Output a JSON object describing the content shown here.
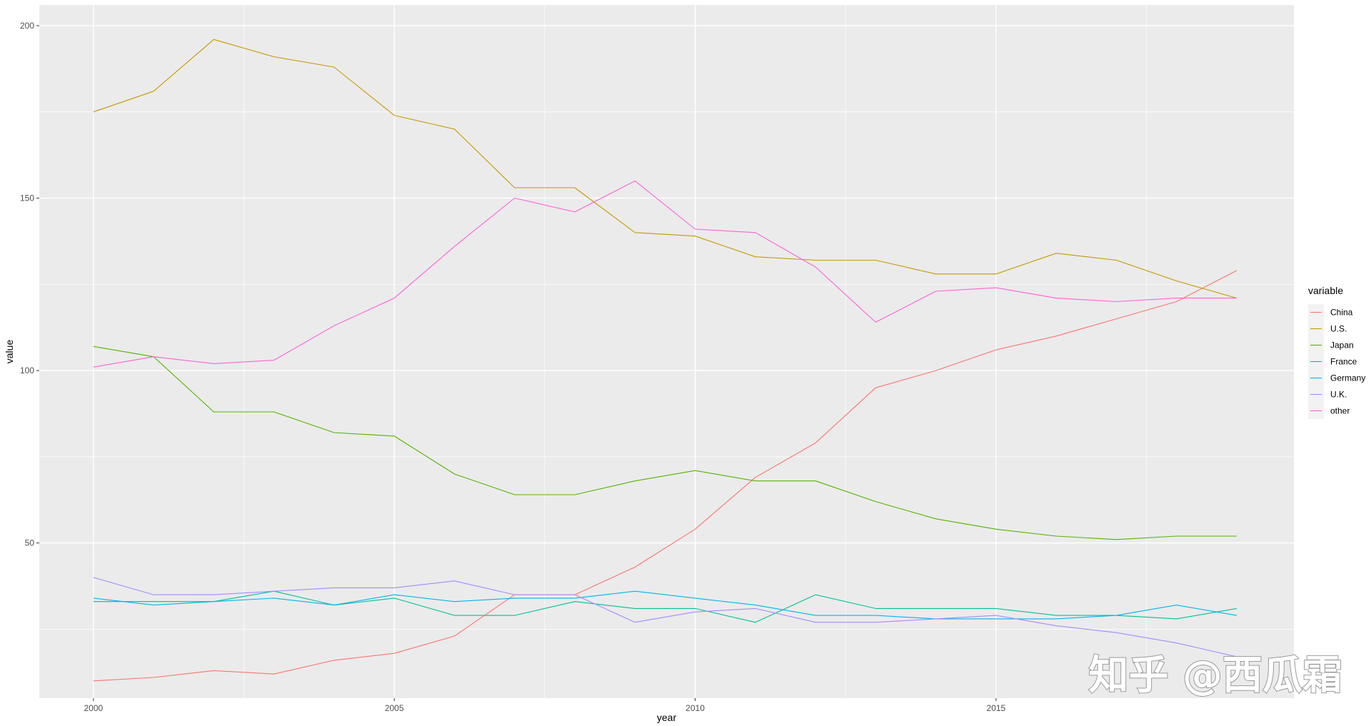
{
  "watermark": "知乎 @西瓜霜",
  "chart_data": {
    "type": "line",
    "xlabel": "year",
    "ylabel": "value",
    "xlim": [
      1999.1,
      2019.95
    ],
    "ylim": [
      5,
      206
    ],
    "x_ticks": [
      2000,
      2005,
      2010,
      2015
    ],
    "y_ticks": [
      50,
      100,
      150,
      200
    ],
    "grid": true,
    "legend": {
      "title": "variable",
      "position": "right"
    },
    "x": [
      2000,
      2001,
      2002,
      2003,
      2004,
      2005,
      2006,
      2007,
      2008,
      2009,
      2010,
      2011,
      2012,
      2013,
      2014,
      2015,
      2016,
      2017,
      2018,
      2019
    ],
    "series": [
      {
        "name": "China",
        "color": "#F8766D",
        "values": [
          10,
          11,
          13,
          12,
          16,
          18,
          23,
          35,
          35,
          43,
          54,
          69,
          79,
          95,
          100,
          106,
          110,
          115,
          120,
          129
        ]
      },
      {
        "name": "U.S.",
        "color": "#C49A00",
        "values": [
          175,
          181,
          196,
          191,
          188,
          174,
          170,
          153,
          153,
          140,
          139,
          133,
          132,
          132,
          128,
          128,
          134,
          132,
          126,
          121
        ]
      },
      {
        "name": "Japan",
        "color": "#53B400",
        "values": [
          107,
          104,
          88,
          88,
          82,
          81,
          70,
          64,
          64,
          68,
          71,
          68,
          68,
          62,
          57,
          54,
          52,
          51,
          52,
          52
        ]
      },
      {
        "name": "France",
        "color": "#00C094",
        "values": [
          33,
          33,
          33,
          36,
          32,
          34,
          29,
          29,
          33,
          31,
          31,
          27,
          35,
          31,
          31,
          31,
          29,
          29,
          28,
          31
        ]
      },
      {
        "name": "Germany",
        "color": "#00B6EB",
        "values": [
          34,
          32,
          33,
          34,
          32,
          35,
          33,
          34,
          34,
          36,
          34,
          32,
          29,
          29,
          28,
          28,
          28,
          29,
          32,
          29
        ]
      },
      {
        "name": "U.K.",
        "color": "#A58AFF",
        "values": [
          40,
          35,
          35,
          36,
          37,
          37,
          39,
          35,
          35,
          27,
          30,
          31,
          27,
          27,
          28,
          29,
          26,
          24,
          21,
          17
        ]
      },
      {
        "name": "other",
        "color": "#FB61D7",
        "values": [
          101,
          104,
          102,
          103,
          113,
          121,
          136,
          150,
          146,
          155,
          141,
          140,
          130,
          114,
          123,
          124,
          121,
          120,
          121,
          121
        ]
      }
    ]
  }
}
